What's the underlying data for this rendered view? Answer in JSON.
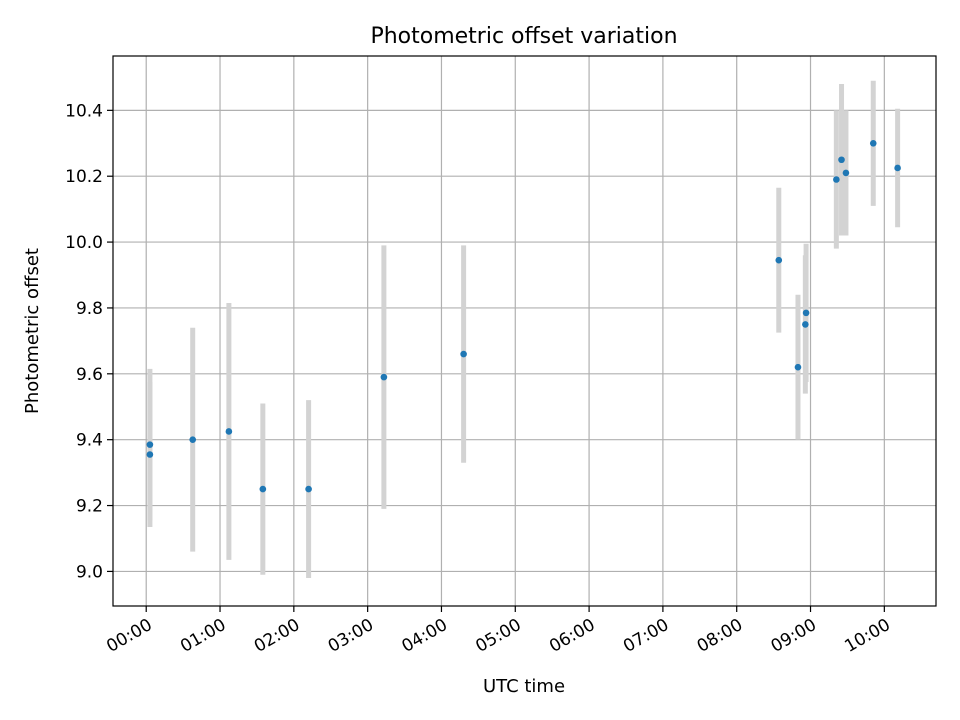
{
  "chart_data": {
    "type": "scatter",
    "title": "Photometric offset variation",
    "xlabel": "UTC time",
    "ylabel": "Photometric offset",
    "x_unit": "hours UTC",
    "xlim": [
      -0.45,
      10.7
    ],
    "ylim": [
      8.895,
      10.565
    ],
    "x_ticks": [
      0,
      1,
      2,
      3,
      4,
      5,
      6,
      7,
      8,
      9,
      10
    ],
    "x_tick_labels": [
      "00:00",
      "01:00",
      "02:00",
      "03:00",
      "04:00",
      "05:00",
      "06:00",
      "07:00",
      "08:00",
      "09:00",
      "10:00"
    ],
    "y_ticks": [
      9.0,
      9.2,
      9.4,
      9.6,
      9.8,
      10.0,
      10.2,
      10.4
    ],
    "y_tick_labels": [
      "9.0",
      "9.2",
      "9.4",
      "9.6",
      "9.8",
      "10.0",
      "10.2",
      "10.4"
    ],
    "grid": true,
    "colors": {
      "point": "#1f77b4",
      "errorbar": "#d3d3d3",
      "grid": "#b0b0b0"
    },
    "series": [
      {
        "points": [
          {
            "x": 0.05,
            "y": 9.385,
            "yerr": 0.23
          },
          {
            "x": 0.05,
            "y": 9.355,
            "yerr": 0.22
          },
          {
            "x": 0.63,
            "y": 9.4,
            "yerr": 0.34
          },
          {
            "x": 1.12,
            "y": 9.425,
            "yerr": 0.39
          },
          {
            "x": 1.58,
            "y": 9.25,
            "yerr": 0.26
          },
          {
            "x": 2.2,
            "y": 9.25,
            "yerr": 0.27
          },
          {
            "x": 3.22,
            "y": 9.59,
            "yerr": 0.4
          },
          {
            "x": 4.3,
            "y": 9.66,
            "yerr": 0.33
          },
          {
            "x": 8.57,
            "y": 9.945,
            "yerr": 0.22
          },
          {
            "x": 8.83,
            "y": 9.62,
            "yerr": 0.22
          },
          {
            "x": 8.94,
            "y": 9.785,
            "yerr": 0.21
          },
          {
            "x": 8.93,
            "y": 9.75,
            "yerr": 0.21
          },
          {
            "x": 9.35,
            "y": 10.19,
            "yerr": 0.21
          },
          {
            "x": 9.42,
            "y": 10.25,
            "yerr": 0.23
          },
          {
            "x": 9.48,
            "y": 10.21,
            "yerr": 0.19
          },
          {
            "x": 9.85,
            "y": 10.3,
            "yerr": 0.19
          },
          {
            "x": 10.18,
            "y": 10.225,
            "yerr": 0.18
          }
        ]
      }
    ]
  }
}
